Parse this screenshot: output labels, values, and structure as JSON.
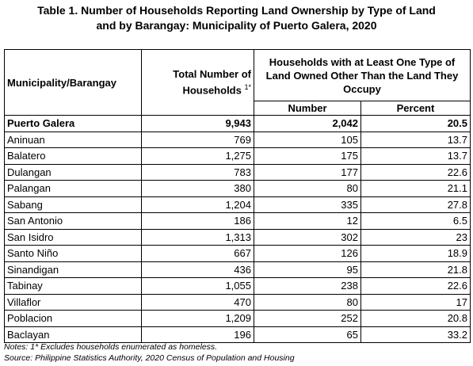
{
  "title": [
    "Table 1. Number of Households Reporting Land Ownership by Type of Land",
    "and by Barangay: Municipality of Puerto Galera, 2020"
  ],
  "table": {
    "headers": {
      "barangay": "Municipality/Barangay",
      "total": "Total Number of Households",
      "total_note": "1*",
      "group": "Households with at Least One Type of Land Owned Other Than the Land They Occupy",
      "number": "Number",
      "percent": "Percent"
    },
    "rows": [
      [
        "Puerto Galera",
        "9,943",
        "2,042",
        "20.5"
      ],
      [
        "Aninuan",
        "769",
        "105",
        "13.7"
      ],
      [
        "Balatero",
        "1,275",
        "175",
        "13.7"
      ],
      [
        "Dulangan",
        "783",
        "177",
        "22.6"
      ],
      [
        "Palangan",
        "380",
        "80",
        "21.1"
      ],
      [
        "Sabang",
        "1,204",
        "335",
        "27.8"
      ],
      [
        "San Antonio",
        "186",
        "12",
        "6.5"
      ],
      [
        "San Isidro",
        "1,313",
        "302",
        "23"
      ],
      [
        "Santo Niño",
        "667",
        "126",
        "18.9"
      ],
      [
        "Sinandigan",
        "436",
        "95",
        "21.8"
      ],
      [
        "Tabinay",
        "1,055",
        "238",
        "22.6"
      ],
      [
        "Villaflor",
        "470",
        "80",
        "17"
      ],
      [
        "Poblacion",
        "1,209",
        "252",
        "20.8"
      ],
      [
        "Baclayan",
        "196",
        "65",
        "33.2"
      ]
    ]
  },
  "notes": [
    "Notes: 1* Excludes households enumerated as homeless.",
    "Source: Philippine Statistics Authority, 2020 Census of Population and Housing"
  ]
}
